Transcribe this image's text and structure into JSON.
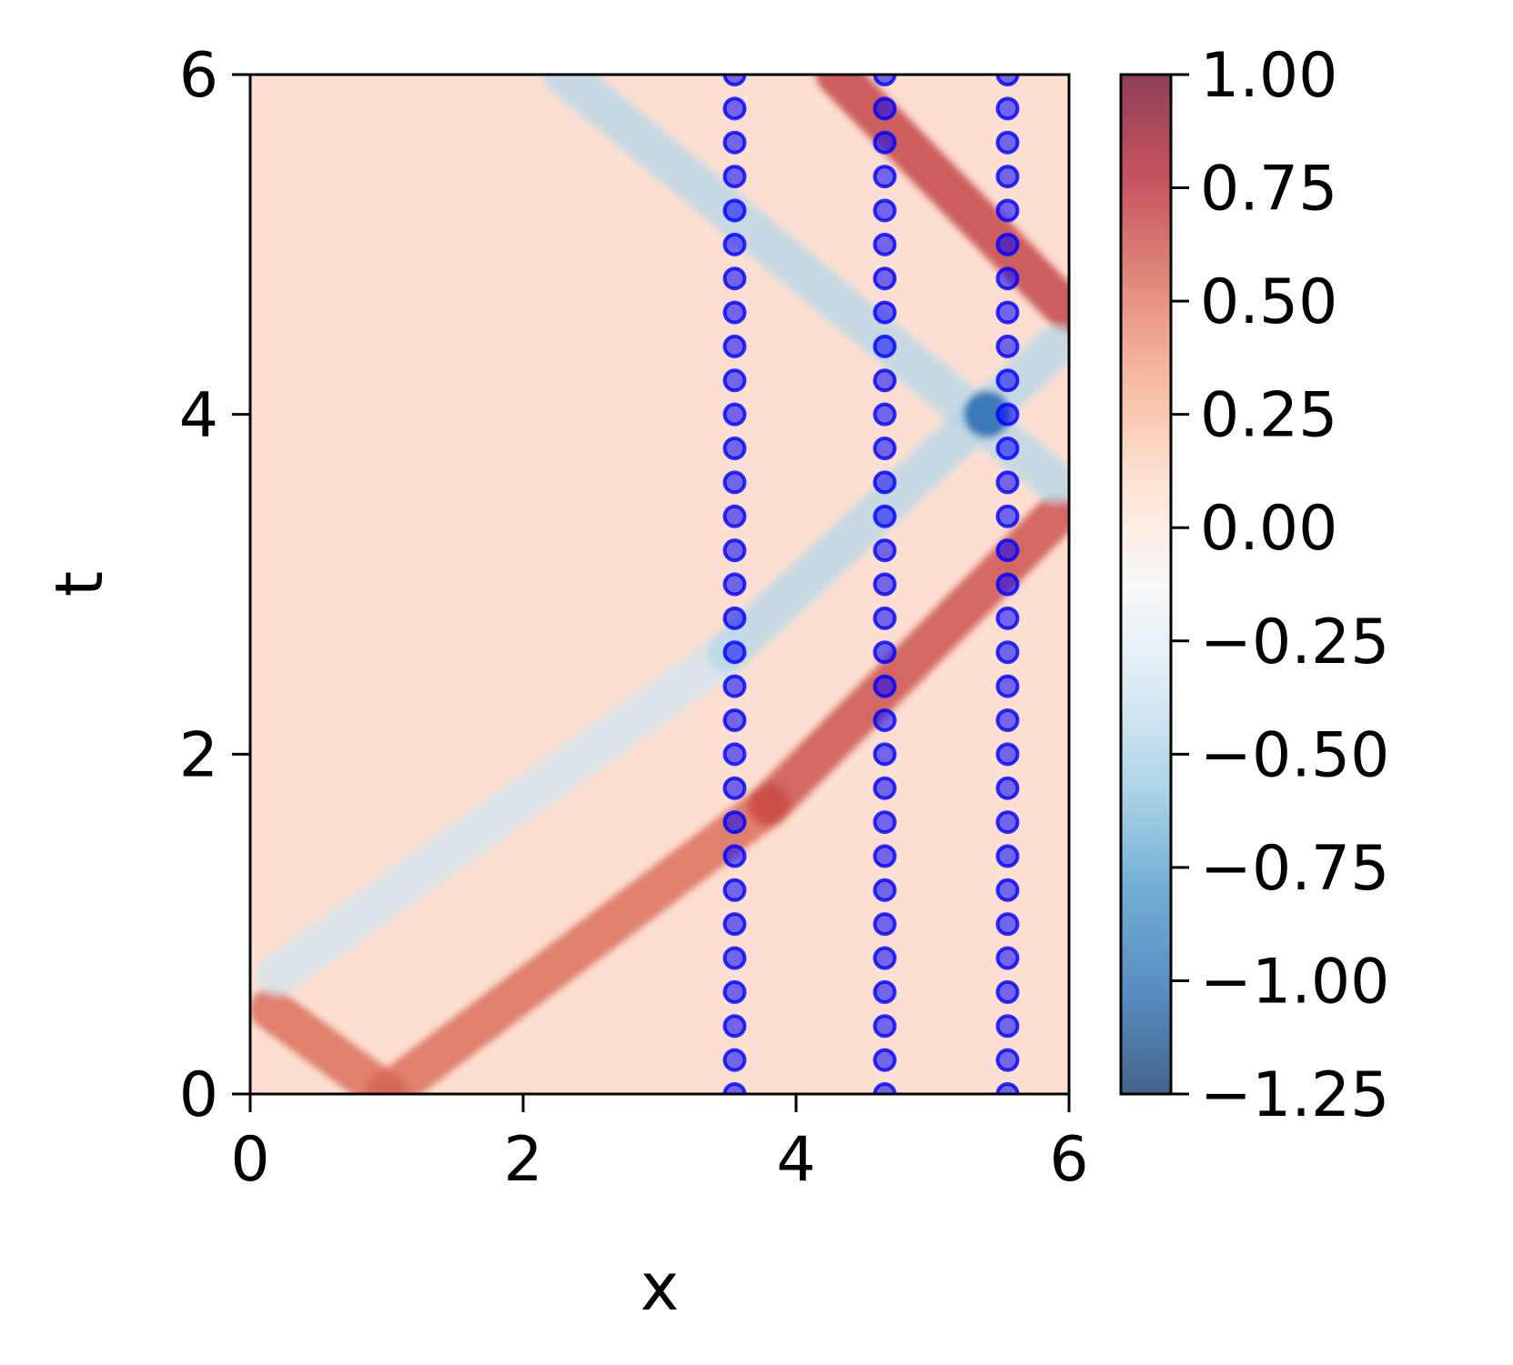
{
  "chart_data": {
    "type": "heatmap",
    "title": "",
    "xlabel": "x",
    "ylabel": "t",
    "xlim": [
      0,
      6
    ],
    "ylim": [
      0,
      6
    ],
    "x_ticks": [
      "0",
      "2",
      "4",
      "6"
    ],
    "y_ticks": [
      "0",
      "2",
      "4",
      "6"
    ],
    "colormap": "RdBu_r",
    "colorbar": {
      "vmin": -1.25,
      "vmax": 1.0,
      "ticks": [
        "1.00",
        "0.75",
        "0.50",
        "0.25",
        "0.00",
        "−0.25",
        "−0.50",
        "−0.75",
        "−1.00",
        "−1.25"
      ]
    },
    "field_features": [
      {
        "sign": "positive",
        "from": [
          1.0,
          0.0
        ],
        "to": [
          3.8,
          1.7
        ],
        "amplitude": 0.55
      },
      {
        "sign": "positive",
        "from": [
          3.8,
          1.7
        ],
        "to": [
          5.9,
          3.4
        ],
        "amplitude": 0.65
      },
      {
        "sign": "positive",
        "from": [
          1.0,
          0.0
        ],
        "to": [
          0.15,
          0.5
        ],
        "amplitude": 0.55
      },
      {
        "sign": "positive",
        "from": [
          4.3,
          6.0
        ],
        "to": [
          6.0,
          4.6
        ],
        "amplitude": 0.7
      },
      {
        "sign": "negative",
        "from": [
          0.2,
          0.7
        ],
        "to": [
          3.5,
          2.6
        ],
        "amplitude": -0.35
      },
      {
        "sign": "negative",
        "from": [
          3.5,
          2.6
        ],
        "to": [
          5.9,
          4.4
        ],
        "amplitude": -0.45
      },
      {
        "sign": "negative",
        "from": [
          2.3,
          6.0
        ],
        "to": [
          5.9,
          3.6
        ],
        "amplitude": -0.45
      },
      {
        "sign": "negative",
        "point": [
          5.4,
          4.0
        ],
        "amplitude": -1.0
      }
    ],
    "sensor_columns": [
      {
        "x": 3.55,
        "t_start": 0.0,
        "t_end": 6.0,
        "count": 31,
        "color": "#0000ff"
      },
      {
        "x": 4.65,
        "t_start": 0.0,
        "t_end": 6.0,
        "count": 31,
        "color": "#0000ff"
      },
      {
        "x": 5.55,
        "t_start": 0.0,
        "t_end": 6.0,
        "count": 31,
        "color": "#0000ff"
      }
    ]
  }
}
